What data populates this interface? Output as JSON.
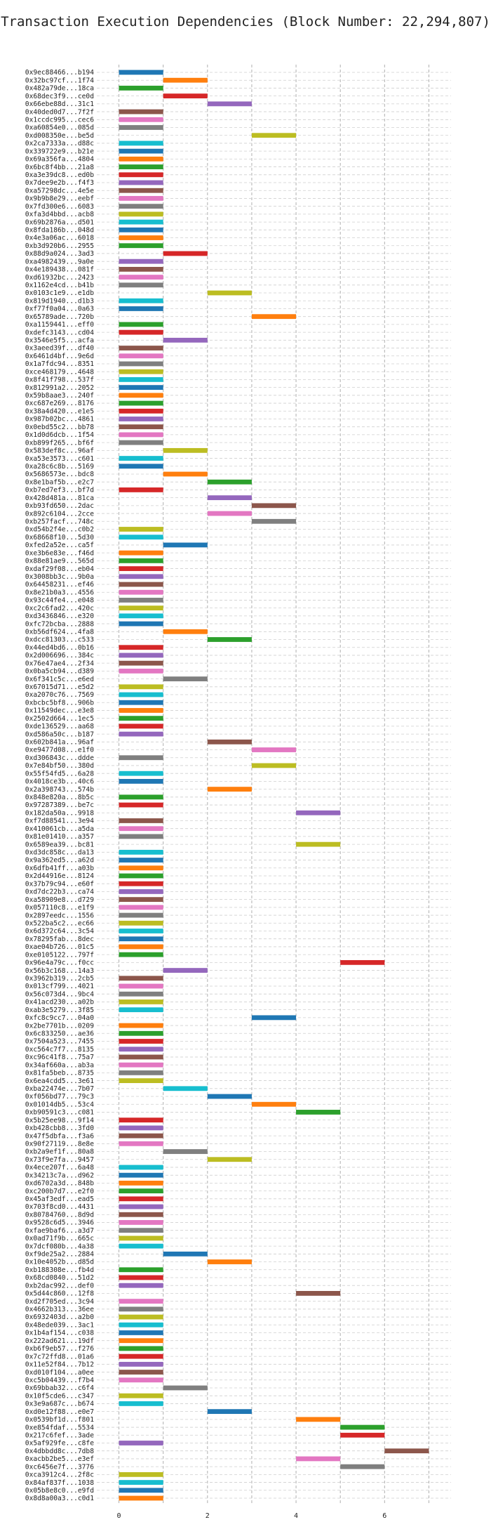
{
  "title": "Transaction Execution Dependencies (Block Number: 22,294,807)",
  "chart_data": {
    "type": "bar",
    "orientation": "horizontal",
    "chart_kind": "gantt",
    "title": "Transaction Execution Dependencies (Block Number: 22,294,807)",
    "xlabel": "",
    "ylabel": "",
    "xlim": [
      -0.5,
      7.5
    ],
    "x_ticks": [
      0,
      2,
      4,
      6
    ],
    "grid": "vertical dashed at every integer",
    "palette": [
      "#1f77b4",
      "#ff7f0e",
      "#2ca02c",
      "#d62728",
      "#9467bd",
      "#8c564b",
      "#e377c2",
      "#7f7f7f",
      "#bcbd22",
      "#17becf"
    ],
    "tasks": [
      {
        "label": "0x9ec88466...b194",
        "start": 0,
        "end": 1
      },
      {
        "label": "0x32bc97cf...1f74",
        "start": 1,
        "end": 2
      },
      {
        "label": "0x482a79de...18ca",
        "start": 0,
        "end": 1
      },
      {
        "label": "0x68dec3f9...ce0d",
        "start": 1,
        "end": 2
      },
      {
        "label": "0x66ebe88d...31c1",
        "start": 2,
        "end": 3
      },
      {
        "label": "0x40ded0d7...7f2f",
        "start": 0,
        "end": 1
      },
      {
        "label": "0x1cc dc995...cec6",
        "start": 0,
        "end": 1
      },
      {
        "label": "0xa60854e0...085d",
        "start": 0,
        "end": 1
      },
      {
        "label": "0xd008350e...be5d",
        "start": 3,
        "end": 4
      },
      {
        "label": "0x2ca7333a...d88c",
        "start": 0,
        "end": 1
      },
      {
        "label": "0x339722e9...b21e",
        "start": 0,
        "end": 1
      },
      {
        "label": "0x69a356fa...4804",
        "start": 0,
        "end": 1
      },
      {
        "label": "0x6bc8f4bb...21a8",
        "start": 0,
        "end": 1
      },
      {
        "label": "0xa3e39dc8...ed0b",
        "start": 0,
        "end": 1
      },
      {
        "label": "0x7dee9e2b...f4f3",
        "start": 0,
        "end": 1
      },
      {
        "label": "0xa57298dc...4e5e",
        "start": 0,
        "end": 1
      },
      {
        "label": "0x9b9b8e29...eebf",
        "start": 0,
        "end": 1
      },
      {
        "label": "0x7fd300e6...6083",
        "start": 0,
        "end": 1
      },
      {
        "label": "0xfa3d4bbd...acb8",
        "start": 0,
        "end": 1
      },
      {
        "label": "0x69b2876a...d501",
        "start": 0,
        "end": 1
      },
      {
        "label": "0x8fda186b...048d",
        "start": 0,
        "end": 1
      },
      {
        "label": "0x4e3a06ac...6018",
        "start": 0,
        "end": 1
      },
      {
        "label": "0xb3d920b6...2955",
        "start": 0,
        "end": 1
      },
      {
        "label": "0x88d9a024...3ad3",
        "start": 1,
        "end": 2
      },
      {
        "label": "0xa4982439...9a0e",
        "start": 0,
        "end": 1
      },
      {
        "label": "0x4e189438...081f",
        "start": 0,
        "end": 1
      },
      {
        "label": "0xd61932bc...2423",
        "start": 0,
        "end": 1
      },
      {
        "label": "0x1162e4cd...b41b",
        "start": 0,
        "end": 1
      },
      {
        "label": "0x0103c1e9...e1db",
        "start": 2,
        "end": 3
      },
      {
        "label": "0x819d1940...d1b3",
        "start": 0,
        "end": 1
      },
      {
        "label": "0xf77f0a04...0a63",
        "start": 0,
        "end": 1
      },
      {
        "label": "0x65789ade...720b",
        "start": 3,
        "end": 4
      },
      {
        "label": "0xa1159441...eff0",
        "start": 0,
        "end": 1
      },
      {
        "label": "0xdefc3143...cd04",
        "start": 0,
        "end": 1
      },
      {
        "label": "0x3546e5f5...acfa",
        "start": 1,
        "end": 2
      },
      {
        "label": "0x3aeed39f...df40",
        "start": 0,
        "end": 1
      },
      {
        "label": "0x6461d4bf...9e6d",
        "start": 0,
        "end": 1
      },
      {
        "label": "0x1a7fdc94...8351",
        "start": 0,
        "end": 1
      },
      {
        "label": "0xce468179...4648",
        "start": 0,
        "end": 1
      },
      {
        "label": "0x8f41f798...537f",
        "start": 0,
        "end": 1
      },
      {
        "label": "0x812991a2...2052",
        "start": 0,
        "end": 1
      },
      {
        "label": "0x59b8aae3...240f",
        "start": 0,
        "end": 1
      },
      {
        "label": "0xc687e269...8176",
        "start": 0,
        "end": 1
      },
      {
        "label": "0x38a4d420...e1e5",
        "start": 0,
        "end": 1
      },
      {
        "label": "0x987b02bc...4861",
        "start": 0,
        "end": 1
      },
      {
        "label": "0x0ebd55c2...bb78",
        "start": 0,
        "end": 1
      },
      {
        "label": "0x1d0d6dcb...1f54",
        "start": 0,
        "end": 1
      },
      {
        "label": "0xb899f265...bf6f",
        "start": 0,
        "end": 1
      },
      {
        "label": "0x583def8c...96af",
        "start": 1,
        "end": 2
      },
      {
        "label": "0xa53e3573...c601",
        "start": 0,
        "end": 1
      },
      {
        "label": "0xa28c6c8b...5169",
        "start": 0,
        "end": 1
      },
      {
        "label": "0x5686573e...bdc8",
        "start": 1,
        "end": 2
      },
      {
        "label": "0x8e1baf5b...e2c7",
        "start": 2,
        "end": 3
      },
      {
        "label": "0xb7ed7ef3...bf7d",
        "start": 0,
        "end": 1
      },
      {
        "label": "0x428d481a...81ca",
        "start": 2,
        "end": 3
      },
      {
        "label": "0xb93fd650...2dac",
        "start": 3,
        "end": 4
      },
      {
        "label": "0x892c6104...2cce",
        "start": 2,
        "end": 3
      },
      {
        "label": "0xb257facf...748c",
        "start": 3,
        "end": 4
      },
      {
        "label": "0xd54b2f4e...c0b2",
        "start": 0,
        "end": 1
      },
      {
        "label": "0x68668f10...5d30",
        "start": 0,
        "end": 1
      },
      {
        "label": "0xfed2a52e...ca5f",
        "start": 1,
        "end": 2
      },
      {
        "label": "0xe3b6e83e...f46d",
        "start": 0,
        "end": 1
      },
      {
        "label": "0x88e81ae9...565d",
        "start": 0,
        "end": 1
      },
      {
        "label": "0xdaf29f08...eb04",
        "start": 0,
        "end": 1
      },
      {
        "label": "0x3008bb3c...9b0a",
        "start": 0,
        "end": 1
      },
      {
        "label": "0x64458231...ef46",
        "start": 0,
        "end": 1
      },
      {
        "label": "0x8e21b0a3...4556",
        "start": 0,
        "end": 1
      },
      {
        "label": "0x93c44fe4...e048",
        "start": 0,
        "end": 1
      },
      {
        "label": "0xc2c6fad2...420c",
        "start": 0,
        "end": 1
      },
      {
        "label": "0xd3436846...e320",
        "start": 0,
        "end": 1
      },
      {
        "label": "0xfc72bcba...2888",
        "start": 0,
        "end": 1
      },
      {
        "label": "0xb56df624...4fa8",
        "start": 1,
        "end": 2
      },
      {
        "label": "0xdcc81303...c533",
        "start": 2,
        "end": 3
      },
      {
        "label": "0x44ed4bd6...0b16",
        "start": 0,
        "end": 1
      },
      {
        "label": "0x2d006696...384c",
        "start": 0,
        "end": 1
      },
      {
        "label": "0x76e47ae4...2f34",
        "start": 0,
        "end": 1
      },
      {
        "label": "0x0ba5cb94...d389",
        "start": 0,
        "end": 1
      },
      {
        "label": "0x6f341c5c...e6ed",
        "start": 1,
        "end": 2
      },
      {
        "label": "0x67015d71...e5d2",
        "start": 0,
        "end": 1
      },
      {
        "label": "0xa2070c76...7569",
        "start": 0,
        "end": 1
      },
      {
        "label": "0xbcbc5bf8...906b",
        "start": 0,
        "end": 1
      },
      {
        "label": "0x11549dec...e3e8",
        "start": 0,
        "end": 1
      },
      {
        "label": "0x2502d664...1ec5",
        "start": 0,
        "end": 1
      },
      {
        "label": "0xde136529...aa68",
        "start": 0,
        "end": 1
      },
      {
        "label": "0xd586a50c...b187",
        "start": 0,
        "end": 1
      },
      {
        "label": "0x602b841a...96af",
        "start": 2,
        "end": 3
      },
      {
        "label": "0xe9477d08...e1f0",
        "start": 3,
        "end": 4
      },
      {
        "label": "0xd306843c...ddde",
        "start": 0,
        "end": 1
      },
      {
        "label": "0x7e84bf50...380d",
        "start": 3,
        "end": 4
      },
      {
        "label": "0x55f54fd5...6a28",
        "start": 0,
        "end": 1
      },
      {
        "label": "0x4018ce3b...40c6",
        "start": 0,
        "end": 1
      },
      {
        "label": "0x2a398743...574b",
        "start": 2,
        "end": 3
      },
      {
        "label": "0x848e820a...8b5c",
        "start": 0,
        "end": 1
      },
      {
        "label": "0x97287389...be7c",
        "start": 0,
        "end": 1
      },
      {
        "label": "0x182da50a...9918",
        "start": 4,
        "end": 5
      },
      {
        "label": "0xf7d88541...3e94",
        "start": 0,
        "end": 1
      },
      {
        "label": "0x410061cb...a5da",
        "start": 0,
        "end": 1
      },
      {
        "label": "0x81e01410...a357",
        "start": 0,
        "end": 1
      },
      {
        "label": "0x6589ea39...bc81",
        "start": 4,
        "end": 5
      },
      {
        "label": "0xd3dc858c...da13",
        "start": 0,
        "end": 1
      },
      {
        "label": "0x9a362ed5...a62d",
        "start": 0,
        "end": 1
      },
      {
        "label": "0x6dfb41ff...a03b",
        "start": 0,
        "end": 1
      },
      {
        "label": "0x2d44916e...8124",
        "start": 0,
        "end": 1
      },
      {
        "label": "0x37b79c94...e60f",
        "start": 0,
        "end": 1
      },
      {
        "label": "0xd7dc22b3...ca74",
        "start": 0,
        "end": 1
      },
      {
        "label": "0xa58909e8...d729",
        "start": 0,
        "end": 1
      },
      {
        "label": "0x057110c8...e1f9",
        "start": 0,
        "end": 1
      },
      {
        "label": "0x2897eedc...1556",
        "start": 0,
        "end": 1
      },
      {
        "label": "0x522ba5c2...ec66",
        "start": 0,
        "end": 1
      },
      {
        "label": "0x6d372c64...3c54",
        "start": 0,
        "end": 1
      },
      {
        "label": "0x78295fab...8dec",
        "start": 0,
        "end": 1
      },
      {
        "label": "0xae04b726...01c5",
        "start": 0,
        "end": 1
      },
      {
        "label": "0xe0105122...797f",
        "start": 0,
        "end": 1
      },
      {
        "label": "0x96e4a79c...f0cc",
        "start": 5,
        "end": 6
      },
      {
        "label": "0x56b3c168...14a3",
        "start": 1,
        "end": 2
      },
      {
        "label": "0x3962b319...2cb5",
        "start": 0,
        "end": 1
      },
      {
        "label": "0x013cf799...4021",
        "start": 0,
        "end": 1
      },
      {
        "label": "0x56c073d4...9bc4",
        "start": 0,
        "end": 1
      },
      {
        "label": "0x41acd230...a02b",
        "start": 0,
        "end": 1
      },
      {
        "label": "0xab3e5279...3f85",
        "start": 0,
        "end": 1
      },
      {
        "label": "0xfc8c9cc7...04a0",
        "start": 3,
        "end": 4
      },
      {
        "label": "0x2be7701b...0209",
        "start": 0,
        "end": 1
      },
      {
        "label": "0x6c833250...ae36",
        "start": 0,
        "end": 1
      },
      {
        "label": "0x7504a523...7455",
        "start": 0,
        "end": 1
      },
      {
        "label": "0xc564c7f7...8135",
        "start": 0,
        "end": 1
      },
      {
        "label": "0xc96c41f8...75a7",
        "start": 0,
        "end": 1
      },
      {
        "label": "0x34af660a...ab3a",
        "start": 0,
        "end": 1
      },
      {
        "label": "0x81fa5beb...8735",
        "start": 0,
        "end": 1
      },
      {
        "label": "0x6ea4cdd5...3e61",
        "start": 0,
        "end": 1
      },
      {
        "label": "0xba22474e...7b07",
        "start": 1,
        "end": 2
      },
      {
        "label": "0xf056bd77...79c3",
        "start": 2,
        "end": 3
      },
      {
        "label": "0x01014db5...53c4",
        "start": 3,
        "end": 4
      },
      {
        "label": "0xb90591c3...c081",
        "start": 4,
        "end": 5
      },
      {
        "label": "0x5b25ee98...9f14",
        "start": 0,
        "end": 1
      },
      {
        "label": "0xb428cbb8...3fd0",
        "start": 0,
        "end": 1
      },
      {
        "label": "0x47f5dbfa...f3a6",
        "start": 0,
        "end": 1
      },
      {
        "label": "0x90f27119...8e8e",
        "start": 0,
        "end": 1
      },
      {
        "label": "0xb2a9ef1f...80a8",
        "start": 1,
        "end": 2
      },
      {
        "label": "0x73f9e7fa...9457",
        "start": 2,
        "end": 3
      },
      {
        "label": "0x4ece207f...6a48",
        "start": 0,
        "end": 1
      },
      {
        "label": "0x34213c7a...d962",
        "start": 0,
        "end": 1
      },
      {
        "label": "0xd6702a3d...848b",
        "start": 0,
        "end": 1
      },
      {
        "label": "0xc200b7d7...e2f0",
        "start": 0,
        "end": 1
      },
      {
        "label": "0x45af3edf...ead5",
        "start": 0,
        "end": 1
      },
      {
        "label": "0x703f8cd0...4431",
        "start": 0,
        "end": 1
      },
      {
        "label": "0x80784760...8d9d",
        "start": 0,
        "end": 1
      },
      {
        "label": "0x9528c6d5...3946",
        "start": 0,
        "end": 1
      },
      {
        "label": "0xfae9baf6...a3d7",
        "start": 0,
        "end": 1
      },
      {
        "label": "0x0ad71f9b...665c",
        "start": 0,
        "end": 1
      },
      {
        "label": "0x7dcf080b...4a38",
        "start": 0,
        "end": 1
      },
      {
        "label": "0xf9de25a2...2884",
        "start": 1,
        "end": 2
      },
      {
        "label": "0x10e4052b...d85d",
        "start": 2,
        "end": 3
      },
      {
        "label": "0xb188308e...fb4d",
        "start": 0,
        "end": 1
      },
      {
        "label": "0x68cd0840...51d2",
        "start": 0,
        "end": 1
      },
      {
        "label": "0xb2dac992...def0",
        "start": 0,
        "end": 1
      },
      {
        "label": "0x5d44c860...12f8",
        "start": 4,
        "end": 5
      },
      {
        "label": "0xd2f705ed...3c94",
        "start": 0,
        "end": 1
      },
      {
        "label": "0x4662b313...36ee",
        "start": 0,
        "end": 1
      },
      {
        "label": "0x6932403d...a2b0",
        "start": 0,
        "end": 1
      },
      {
        "label": "0x48ede039...3ac1",
        "start": 0,
        "end": 1
      },
      {
        "label": "0x1b4af154...c038",
        "start": 0,
        "end": 1
      },
      {
        "label": "0x222ad621...19df",
        "start": 0,
        "end": 1
      },
      {
        "label": "0xb6f9eb57...f276",
        "start": 0,
        "end": 1
      },
      {
        "label": "0x7c72ffd8...01a6",
        "start": 0,
        "end": 1
      },
      {
        "label": "0x11e52f84...7b12",
        "start": 0,
        "end": 1
      },
      {
        "label": "0xd010f104...a0ee",
        "start": 0,
        "end": 1
      },
      {
        "label": "0xc5b04439...f7b4",
        "start": 0,
        "end": 1
      },
      {
        "label": "0x69bbab32...c6f4",
        "start": 1,
        "end": 2
      },
      {
        "label": "0x10f5cde6...c347",
        "start": 0,
        "end": 1
      },
      {
        "label": "0x3e9a687c...b674",
        "start": 0,
        "end": 1
      },
      {
        "label": "0xd0e12f88...e0e7",
        "start": 2,
        "end": 3
      },
      {
        "label": "0x0539bf1d...f801",
        "start": 4,
        "end": 5
      },
      {
        "label": "0xe854fdaf...5534",
        "start": 5,
        "end": 6
      },
      {
        "label": "0x217c6fef...3ade",
        "start": 5,
        "end": 6
      },
      {
        "label": "0x5af929fe...c8fe",
        "start": 0,
        "end": 1
      },
      {
        "label": "0x4dbbdd8c...7db8",
        "start": 6,
        "end": 7
      },
      {
        "label": "0xacbb2be5...e3ef",
        "start": 4,
        "end": 5
      },
      {
        "label": "0xc6456e7f...3776",
        "start": 5,
        "end": 6
      },
      {
        "label": "0xca3912c4...2f8c",
        "start": 0,
        "end": 1
      },
      {
        "label": "0x84af837f...1038",
        "start": 0,
        "end": 1
      },
      {
        "label": "0x05b8e8c0...e9fd",
        "start": 0,
        "end": 1
      },
      {
        "label": "0x8d8a00a3...c0d1",
        "start": 0,
        "end": 1
      }
    ]
  }
}
